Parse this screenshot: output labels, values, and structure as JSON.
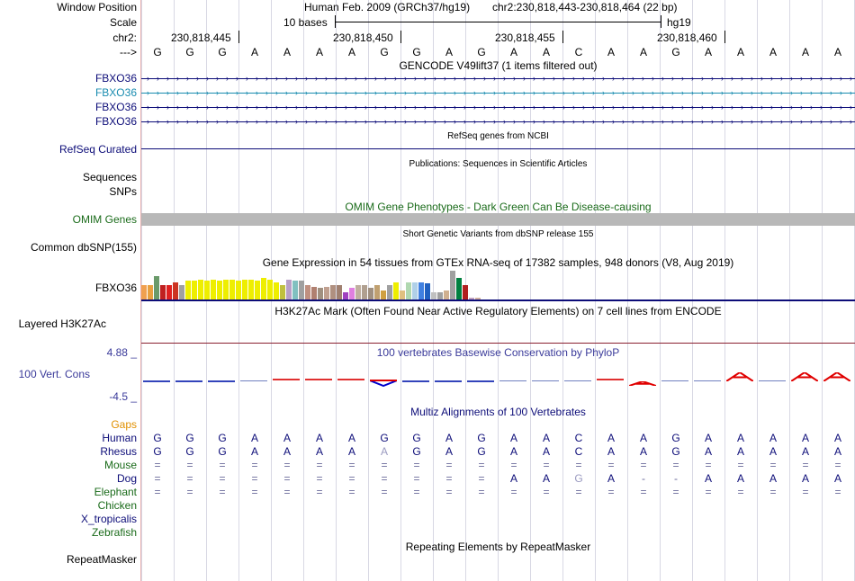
{
  "ruler": {
    "window_label": "Window Position",
    "scale_label": "Scale",
    "chrom_label": "chr2:",
    "arrow_label": "--->",
    "assembly_text": "Human Feb. 2009 (GRCh37/hg19)",
    "position_text": "chr2:230,818,443-230,818,464 (22 bp)",
    "scale_text": "10 bases",
    "db_text": "hg19",
    "coords": [
      "230,818,445",
      "230,818,450",
      "230,818,455",
      "230,818,460"
    ]
  },
  "sequence": [
    "G",
    "G",
    "G",
    "A",
    "A",
    "A",
    "A",
    "G",
    "G",
    "A",
    "G",
    "A",
    "A",
    "C",
    "A",
    "A",
    "G",
    "A",
    "A",
    "A",
    "A",
    "A"
  ],
  "gencode": {
    "title": "GENCODE V49lift37 (1 items filtered out)",
    "genes": [
      {
        "name": "FBXO36",
        "color": "#0c0c78"
      },
      {
        "name": "FBXO36",
        "color": "#1a8cb0"
      },
      {
        "name": "FBXO36",
        "color": "#0c0c78"
      },
      {
        "name": "FBXO36",
        "color": "#0c0c78"
      }
    ]
  },
  "refseq": {
    "title": "RefSeq genes from NCBI",
    "label": "RefSeq Curated",
    "color": "#0c0c78"
  },
  "publications": {
    "title": "Publications: Sequences in Scientific Articles",
    "label_seq": "Sequences",
    "label_snp": "SNPs"
  },
  "omim": {
    "title": "OMIM Gene Phenotypes - Dark Green Can Be Disease-causing",
    "label": "OMIM Genes",
    "color": "#1a6b1a"
  },
  "dbsnp": {
    "title": "Short Genetic Variants from dbSNP release 155",
    "label": "Common dbSNP(155)"
  },
  "gtex": {
    "title": "Gene Expression in 54 tissues from GTEx RNA-seq of 17382 samples, 948 donors (V8, Aug 2019)",
    "label": "FBXO36",
    "bars": [
      {
        "v": 0.5,
        "c": "#f0a050"
      },
      {
        "v": 0.5,
        "c": "#e8a040"
      },
      {
        "v": 0.8,
        "c": "#6a9a6a"
      },
      {
        "v": 0.5,
        "c": "#c02020"
      },
      {
        "v": 0.5,
        "c": "#e02020"
      },
      {
        "v": 0.6,
        "c": "#cc3322"
      },
      {
        "v": 0.5,
        "c": "#a0a0a0"
      },
      {
        "v": 0.65,
        "c": "#eeee00"
      },
      {
        "v": 0.65,
        "c": "#eeee00"
      },
      {
        "v": 0.7,
        "c": "#eeee00"
      },
      {
        "v": 0.65,
        "c": "#eeee00"
      },
      {
        "v": 0.7,
        "c": "#eeee00"
      },
      {
        "v": 0.65,
        "c": "#eeee00"
      },
      {
        "v": 0.7,
        "c": "#eeee00"
      },
      {
        "v": 0.7,
        "c": "#eeee00"
      },
      {
        "v": 0.65,
        "c": "#eeee00"
      },
      {
        "v": 0.7,
        "c": "#eeee00"
      },
      {
        "v": 0.7,
        "c": "#eeee00"
      },
      {
        "v": 0.65,
        "c": "#eeee00"
      },
      {
        "v": 0.75,
        "c": "#eeee00"
      },
      {
        "v": 0.7,
        "c": "#eeee00"
      },
      {
        "v": 0.6,
        "c": "#eeee00"
      },
      {
        "v": 0.5,
        "c": "#c0c040"
      },
      {
        "v": 0.7,
        "c": "#b8a0c8"
      },
      {
        "v": 0.65,
        "c": "#80c0c0"
      },
      {
        "v": 0.65,
        "c": "#a0a0a0"
      },
      {
        "v": 0.5,
        "c": "#c09080"
      },
      {
        "v": 0.45,
        "c": "#b08070"
      },
      {
        "v": 0.4,
        "c": "#a09080"
      },
      {
        "v": 0.45,
        "c": "#c0a090"
      },
      {
        "v": 0.5,
        "c": "#b09080"
      },
      {
        "v": 0.5,
        "c": "#a08070"
      },
      {
        "v": 0.25,
        "c": "#a040c0"
      },
      {
        "v": 0.4,
        "c": "#e080e0"
      },
      {
        "v": 0.5,
        "c": "#c0b0a0"
      },
      {
        "v": 0.5,
        "c": "#b0a090"
      },
      {
        "v": 0.4,
        "c": "#a09080"
      },
      {
        "v": 0.5,
        "c": "#c0a070"
      },
      {
        "v": 0.3,
        "c": "#d0a040"
      },
      {
        "v": 0.5,
        "c": "#a0a0a0"
      },
      {
        "v": 0.6,
        "c": "#eeee00"
      },
      {
        "v": 0.3,
        "c": "#e0c080"
      },
      {
        "v": 0.6,
        "c": "#b0d8b0"
      },
      {
        "v": 0.6,
        "c": "#b0d0e8"
      },
      {
        "v": 0.6,
        "c": "#4080e0"
      },
      {
        "v": 0.55,
        "c": "#2060c0"
      },
      {
        "v": 0.25,
        "c": "#c0c0c0"
      },
      {
        "v": 0.25,
        "c": "#a0a0a0"
      },
      {
        "v": 0.3,
        "c": "#d0b090"
      },
      {
        "v": 1.0,
        "c": "#a0a0a0"
      },
      {
        "v": 0.75,
        "c": "#008040"
      },
      {
        "v": 0.5,
        "c": "#b02020"
      },
      {
        "v": 0.05,
        "c": "#c0a0c0"
      },
      {
        "v": 0.05,
        "c": "#d0b0a0"
      }
    ]
  },
  "h3k27ac": {
    "title": "H3K27Ac Mark (Often Found Near Active Regulatory Elements) on 7 cell lines from ENCODE",
    "label": "Layered H3K27Ac",
    "color": "#8a2030"
  },
  "phylop": {
    "title": "100 vertebrates Basewise Conservation by PhyloP",
    "label": "100 Vert. Cons",
    "max_label": "4.88 _",
    "min_label": "-4.5 _",
    "color": "#3a3a9a",
    "scores": [
      -0.6,
      -0.5,
      -0.5,
      0.0,
      0.15,
      0.2,
      0.15,
      -1.2,
      -0.4,
      -0.3,
      -0.3,
      0.0,
      0.0,
      0.0,
      0.3,
      0.9,
      0.0,
      0.0,
      1.6,
      0.0,
      1.6,
      1.6
    ]
  },
  "multiz": {
    "title": "Multiz Alignments of 100 Vertebrates",
    "gaps_label": "Gaps",
    "species": [
      {
        "name": "Human",
        "color": "#0c0c78",
        "bases": [
          "G",
          "G",
          "G",
          "A",
          "A",
          "A",
          "A",
          "G",
          "G",
          "A",
          "G",
          "A",
          "A",
          "C",
          "A",
          "A",
          "G",
          "A",
          "A",
          "A",
          "A",
          "A"
        ]
      },
      {
        "name": "Rhesus",
        "color": "#0c0c78",
        "bases": [
          "G",
          "G",
          "G",
          "A",
          "A",
          "A",
          "A",
          "A",
          "G",
          "A",
          "G",
          "A",
          "A",
          "C",
          "A",
          "A",
          "G",
          "A",
          "A",
          "A",
          "A",
          "A"
        ]
      },
      {
        "name": "Mouse",
        "color": "#1a6b1a",
        "bases": [
          "=",
          "=",
          "=",
          "=",
          "=",
          "=",
          "=",
          "=",
          "=",
          "=",
          "=",
          "=",
          "=",
          "=",
          "=",
          "=",
          "=",
          "=",
          "=",
          "=",
          "=",
          "="
        ]
      },
      {
        "name": "Dog",
        "color": "#0c0c78",
        "bases": [
          "=",
          "=",
          "=",
          "=",
          "=",
          "=",
          "=",
          "=",
          "=",
          "=",
          "=",
          "A",
          "A",
          "G",
          "A",
          "-",
          "-",
          "A",
          "A",
          "A",
          "A",
          "A"
        ]
      },
      {
        "name": "Elephant",
        "color": "#1a6b1a",
        "bases": [
          "=",
          "=",
          "=",
          "=",
          "=",
          "=",
          "=",
          "=",
          "=",
          "=",
          "=",
          "=",
          "=",
          "=",
          "=",
          "=",
          "=",
          "=",
          "=",
          "=",
          "=",
          "="
        ]
      },
      {
        "name": "Chicken",
        "color": "#1a6b1a",
        "bases": []
      },
      {
        "name": "X_tropicalis",
        "color": "#0c0c78",
        "bases": []
      },
      {
        "name": "Zebrafish",
        "color": "#1a6b1a",
        "bases": []
      }
    ]
  },
  "repeatmasker": {
    "title": "Repeating Elements by RepeatMasker",
    "label": "RepeatMasker"
  }
}
